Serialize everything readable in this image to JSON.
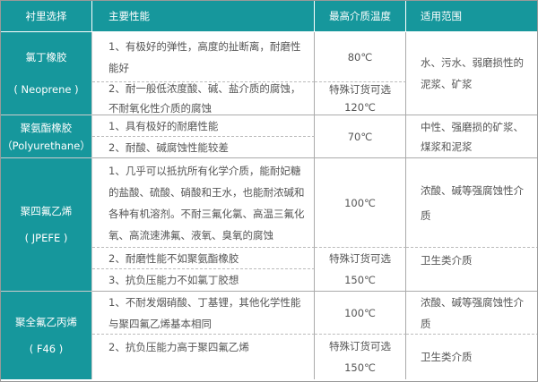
{
  "header": [
    "衬里选择",
    "主要性能",
    "最高介质温度",
    "适用范围"
  ],
  "rows": {
    "neoprene": {
      "name": "氯丁橡胶",
      "code": "( Neoprene )",
      "perf": [
        "1、有极好的弹性，高度的扯断离，耐磨性能好",
        "2、耐一般低浓度酸、碱、盐介质的腐蚀，不耐氧化性介质的腐蚀"
      ],
      "temp1": "80℃",
      "temp2a": "特殊订货可选",
      "temp2b": "120℃",
      "scope": "水、污水、弱磨损性的泥浆、矿浆"
    },
    "poly": {
      "name": "聚氨酯橡胶",
      "code": "（Polyurethane）",
      "perf": [
        "1、具有极好的耐磨性能",
        "2、耐酸、碱腐蚀性能较差"
      ],
      "temp": "70℃",
      "scope": "中性、强磨损的矿浆、煤浆和泥浆"
    },
    "ptfe": {
      "name": "聚四氟乙烯",
      "code": "( JPEFE )",
      "perf": [
        "1、几乎可以抵抗所有化学介质，能耐妃糖的盐酸、硫酸、硝酸和王水，也能耐浓碱和各种有机溶剂。不耐三氟化氯、高温三氟化氧、高流速沸氟、液氧、臭氧的腐蚀",
        "2、耐磨性能不如聚氨酯橡胶",
        "3、抗负压能力不如氯丁胶想"
      ],
      "temp1": "100℃",
      "temp2a": "特殊订货可选",
      "temp2b": "150℃",
      "scope1": "浓酸、碱等强腐蚀性介质",
      "scope2": "卫生类介质"
    },
    "f46": {
      "name": "聚全氟乙丙烯",
      "code": "( F46 )",
      "perf": [
        "1、不耐发烟硝酸、丁基锂，其他化学性能与聚四氟乙烯基本相同",
        "2、抗负压能力高于聚四氟乙烯"
      ],
      "temp1": "100℃",
      "temp2a": "特殊订货可选",
      "temp2b": "150℃",
      "scope1": "浓酸、碱等强腐蚀性介质",
      "scope2": "卫生类介质"
    }
  }
}
